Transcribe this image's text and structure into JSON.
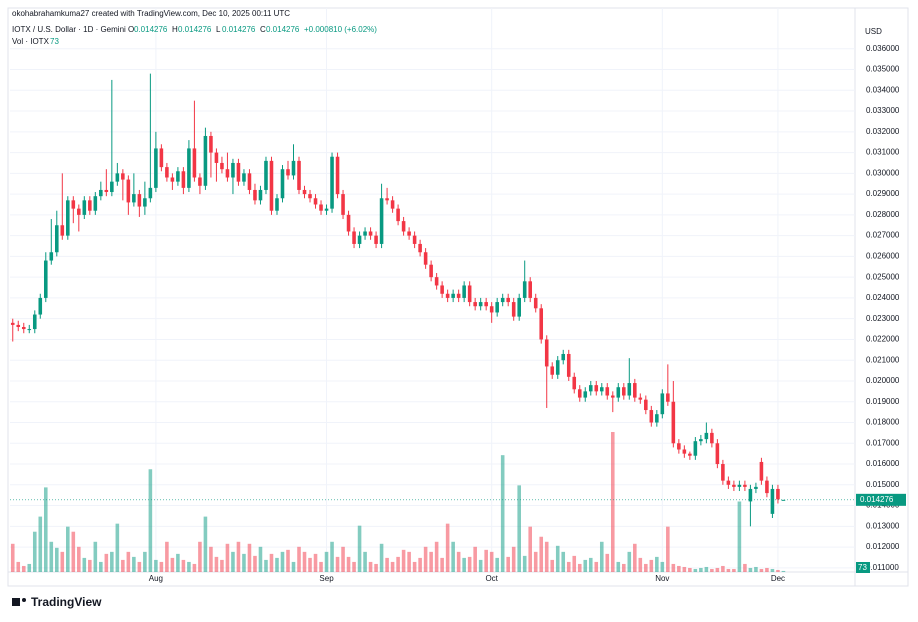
{
  "header": {
    "credit": "okohabrahamkuma27 created with TradingView.com, Dec 10, 2025 00:11 UTC",
    "symbol": "IOTX / U.S. Dollar · 1D · Gemini",
    "ohlc_labels": [
      "O",
      "H",
      "L",
      "C"
    ],
    "change": "+0.000810 (+6.02%)",
    "volume_label": "Vol · IOTX",
    "currency": "USD"
  },
  "footer": {
    "brand": "TradingView"
  },
  "chart_data": {
    "type": "candlestick",
    "up_color": "#089981",
    "down_color": "#f23645",
    "grid": true,
    "xlim": [
      -0.5,
      153
    ],
    "ylim": [
      0.0108,
      0.037
    ],
    "xticks": [
      {
        "value": 26,
        "label": "Aug"
      },
      {
        "value": 57,
        "label": "Sep"
      },
      {
        "value": 87,
        "label": "Oct"
      },
      {
        "value": 118,
        "label": "Nov"
      },
      {
        "value": 139,
        "label": "Dec"
      }
    ],
    "yticks": [
      {
        "value": 0.011,
        "label": "0.011000"
      },
      {
        "value": 0.012,
        "label": "0.012000"
      },
      {
        "value": 0.013,
        "label": "0.013000"
      },
      {
        "value": 0.014,
        "label": "0.014000"
      },
      {
        "value": 0.015,
        "label": "0.015000"
      },
      {
        "value": 0.016,
        "label": "0.016000"
      },
      {
        "value": 0.017,
        "label": "0.017000"
      },
      {
        "value": 0.018,
        "label": "0.018000"
      },
      {
        "value": 0.019,
        "label": "0.019000"
      },
      {
        "value": 0.02,
        "label": "0.020000"
      },
      {
        "value": 0.021,
        "label": "0.021000"
      },
      {
        "value": 0.022,
        "label": "0.022000"
      },
      {
        "value": 0.023,
        "label": "0.023000"
      },
      {
        "value": 0.024,
        "label": "0.024000"
      },
      {
        "value": 0.025,
        "label": "0.025000"
      },
      {
        "value": 0.026,
        "label": "0.026000"
      },
      {
        "value": 0.027,
        "label": "0.027000"
      },
      {
        "value": 0.028,
        "label": "0.028000"
      },
      {
        "value": 0.029,
        "label": "0.029000"
      },
      {
        "value": 0.03,
        "label": "0.030000"
      },
      {
        "value": 0.031,
        "label": "0.031000"
      },
      {
        "value": 0.032,
        "label": "0.032000"
      },
      {
        "value": 0.033,
        "label": "0.033000"
      },
      {
        "value": 0.034,
        "label": "0.034000"
      },
      {
        "value": 0.035,
        "label": "0.035000"
      },
      {
        "value": 0.036,
        "label": "0.036000"
      }
    ],
    "open": [
      0.0228,
      0.0227,
      0.0226,
      0.0225,
      0.0225,
      0.0232,
      0.024,
      0.0258,
      0.0262,
      0.0275,
      0.027,
      0.0287,
      0.0283,
      0.028,
      0.0287,
      0.0282,
      0.0289,
      0.0292,
      0.0291,
      0.0296,
      0.03,
      0.0297,
      0.0286,
      0.029,
      0.0284,
      0.0288,
      0.0293,
      0.0312,
      0.0303,
      0.0298,
      0.0296,
      0.0301,
      0.0293,
      0.0312,
      0.0298,
      0.0294,
      0.0318,
      0.031,
      0.0305,
      0.0302,
      0.0298,
      0.0305,
      0.0296,
      0.03,
      0.0292,
      0.0287,
      0.0292,
      0.0306,
      0.0282,
      0.0288,
      0.0302,
      0.0299,
      0.0306,
      0.0292,
      0.029,
      0.0288,
      0.0285,
      0.0282,
      0.0283,
      0.0308,
      0.029,
      0.028,
      0.0272,
      0.0266,
      0.027,
      0.0272,
      0.027,
      0.0266,
      0.0288,
      0.0287,
      0.0283,
      0.0277,
      0.0272,
      0.027,
      0.0266,
      0.0262,
      0.0256,
      0.025,
      0.0246,
      0.0242,
      0.024,
      0.0242,
      0.024,
      0.0246,
      0.0238,
      0.0236,
      0.0238,
      0.0236,
      0.0233,
      0.0238,
      0.024,
      0.0238,
      0.0231,
      0.024,
      0.0248,
      0.024,
      0.0235,
      0.022,
      0.0207,
      0.0203,
      0.021,
      0.0213,
      0.0202,
      0.0196,
      0.0192,
      0.0195,
      0.0198,
      0.0195,
      0.0197,
      0.0193,
      0.0192,
      0.0197,
      0.0193,
      0.0199,
      0.0192,
      0.0191,
      0.0186,
      0.018,
      0.0184,
      0.0194,
      0.019,
      0.017,
      0.0167,
      0.0165,
      0.0164,
      0.0171,
      0.0172,
      0.0175,
      0.017,
      0.016,
      0.0152,
      0.015,
      0.0149,
      0.015,
      0.0142,
      0.0148,
      0.0161,
      0.0152,
      0.0136,
      0.0148,
      0.014276
    ],
    "high": [
      0.023,
      0.0229,
      0.0228,
      0.0227,
      0.0234,
      0.0242,
      0.0262,
      0.0278,
      0.0282,
      0.03,
      0.0289,
      0.0289,
      0.0285,
      0.0289,
      0.0289,
      0.0291,
      0.0296,
      0.0302,
      0.0345,
      0.0305,
      0.0302,
      0.0299,
      0.03,
      0.0292,
      0.0296,
      0.0348,
      0.032,
      0.0314,
      0.0305,
      0.03,
      0.0303,
      0.0303,
      0.0316,
      0.0335,
      0.03,
      0.0322,
      0.032,
      0.0312,
      0.0308,
      0.031,
      0.0307,
      0.0307,
      0.0302,
      0.0302,
      0.0295,
      0.0294,
      0.0308,
      0.0308,
      0.029,
      0.0304,
      0.0306,
      0.0314,
      0.0308,
      0.0294,
      0.0292,
      0.029,
      0.0287,
      0.0285,
      0.031,
      0.031,
      0.0292,
      0.0282,
      0.0274,
      0.0272,
      0.0274,
      0.0274,
      0.0272,
      0.0295,
      0.0293,
      0.0289,
      0.0285,
      0.0279,
      0.0274,
      0.0272,
      0.0268,
      0.0264,
      0.0258,
      0.0252,
      0.0248,
      0.0244,
      0.0244,
      0.0244,
      0.0248,
      0.0248,
      0.024,
      0.024,
      0.024,
      0.0238,
      0.024,
      0.0242,
      0.0242,
      0.024,
      0.0242,
      0.0258,
      0.025,
      0.0242,
      0.0237,
      0.0222,
      0.0209,
      0.0212,
      0.0215,
      0.0215,
      0.0204,
      0.0198,
      0.0197,
      0.02,
      0.02,
      0.0199,
      0.0199,
      0.0195,
      0.0199,
      0.0199,
      0.0211,
      0.0201,
      0.0194,
      0.0193,
      0.0188,
      0.0186,
      0.0196,
      0.0208,
      0.02,
      0.0172,
      0.0169,
      0.0166,
      0.0173,
      0.0174,
      0.018,
      0.0177,
      0.0172,
      0.0162,
      0.0154,
      0.0152,
      0.0152,
      0.0152,
      0.015,
      0.0151,
      0.0163,
      0.0154,
      0.015,
      0.015,
      0.014276
    ],
    "low": [
      0.0219,
      0.0224,
      0.0223,
      0.0223,
      0.0223,
      0.023,
      0.0238,
      0.0256,
      0.026,
      0.0268,
      0.0268,
      0.0276,
      0.0272,
      0.0278,
      0.028,
      0.028,
      0.0287,
      0.0289,
      0.0289,
      0.0294,
      0.0287,
      0.028,
      0.0284,
      0.0279,
      0.028,
      0.0286,
      0.0291,
      0.0301,
      0.0296,
      0.0292,
      0.0294,
      0.029,
      0.0291,
      0.0296,
      0.029,
      0.0292,
      0.0298,
      0.0296,
      0.03,
      0.0296,
      0.029,
      0.0294,
      0.0294,
      0.029,
      0.0285,
      0.0285,
      0.029,
      0.028,
      0.028,
      0.0286,
      0.0297,
      0.0297,
      0.029,
      0.0288,
      0.0286,
      0.0283,
      0.028,
      0.028,
      0.0281,
      0.0288,
      0.0278,
      0.027,
      0.0264,
      0.0264,
      0.0268,
      0.0268,
      0.0264,
      0.0264,
      0.0285,
      0.0281,
      0.0275,
      0.027,
      0.0268,
      0.0264,
      0.026,
      0.0254,
      0.0248,
      0.0244,
      0.024,
      0.0238,
      0.0238,
      0.0238,
      0.0238,
      0.0236,
      0.0234,
      0.0234,
      0.0234,
      0.0228,
      0.0231,
      0.0236,
      0.0236,
      0.0229,
      0.0229,
      0.0238,
      0.0238,
      0.0233,
      0.0218,
      0.0187,
      0.0201,
      0.0201,
      0.0208,
      0.02,
      0.0194,
      0.019,
      0.019,
      0.0193,
      0.0193,
      0.0193,
      0.0191,
      0.0185,
      0.019,
      0.0191,
      0.0191,
      0.019,
      0.0189,
      0.0184,
      0.0178,
      0.0178,
      0.0182,
      0.0188,
      0.0168,
      0.0165,
      0.0163,
      0.0162,
      0.0162,
      0.0169,
      0.017,
      0.0168,
      0.0158,
      0.015,
      0.0148,
      0.0147,
      0.0147,
      0.0147,
      0.013,
      0.0146,
      0.015,
      0.0144,
      0.0134,
      0.0141,
      0.014276
    ],
    "close": [
      0.0227,
      0.0226,
      0.0225,
      0.0225,
      0.0232,
      0.024,
      0.0258,
      0.0262,
      0.0275,
      0.027,
      0.0287,
      0.0283,
      0.028,
      0.0287,
      0.0282,
      0.0289,
      0.0292,
      0.0291,
      0.0296,
      0.03,
      0.0297,
      0.0286,
      0.029,
      0.0284,
      0.0288,
      0.0293,
      0.0312,
      0.0303,
      0.0298,
      0.0296,
      0.0301,
      0.0293,
      0.0312,
      0.0298,
      0.0294,
      0.0318,
      0.031,
      0.0305,
      0.0302,
      0.0298,
      0.0305,
      0.0296,
      0.03,
      0.0292,
      0.0287,
      0.0292,
      0.0306,
      0.0282,
      0.0288,
      0.0302,
      0.0299,
      0.0306,
      0.0292,
      0.029,
      0.0288,
      0.0285,
      0.0282,
      0.0283,
      0.0308,
      0.029,
      0.028,
      0.0272,
      0.0266,
      0.027,
      0.0272,
      0.027,
      0.0266,
      0.0288,
      0.0287,
      0.0283,
      0.0277,
      0.0272,
      0.027,
      0.0266,
      0.0262,
      0.0256,
      0.025,
      0.0246,
      0.0242,
      0.024,
      0.0242,
      0.024,
      0.0246,
      0.0238,
      0.0236,
      0.0238,
      0.0236,
      0.0233,
      0.0238,
      0.024,
      0.0238,
      0.0231,
      0.024,
      0.0248,
      0.024,
      0.0235,
      0.022,
      0.0207,
      0.0203,
      0.021,
      0.0213,
      0.0202,
      0.0196,
      0.0192,
      0.0195,
      0.0198,
      0.0195,
      0.0197,
      0.0193,
      0.0192,
      0.0197,
      0.0193,
      0.0199,
      0.0192,
      0.0191,
      0.0186,
      0.018,
      0.0184,
      0.0194,
      0.019,
      0.017,
      0.0167,
      0.0165,
      0.0164,
      0.0171,
      0.0172,
      0.0175,
      0.017,
      0.016,
      0.0152,
      0.015,
      0.0149,
      0.015,
      0.0149,
      0.0148,
      0.0149,
      0.0152,
      0.0146,
      0.0148,
      0.0143,
      0.014276
    ],
    "volume": [
      1960,
      700,
      420,
      560,
      2800,
      3850,
      5880,
      2100,
      1680,
      1400,
      3150,
      2800,
      1750,
      980,
      840,
      2100,
      700,
      1260,
      1400,
      3360,
      840,
      1400,
      1050,
      700,
      1400,
      7140,
      840,
      700,
      2100,
      980,
      1260,
      840,
      700,
      560,
      2100,
      3850,
      1750,
      1050,
      840,
      1960,
      1400,
      2100,
      1260,
      1960,
      1120,
      1750,
      840,
      1260,
      980,
      1400,
      1540,
      700,
      1750,
      1400,
      980,
      1260,
      700,
      1400,
      2100,
      1050,
      1750,
      1050,
      700,
      3220,
      1400,
      700,
      560,
      1960,
      980,
      700,
      1050,
      1540,
      1400,
      700,
      980,
      1750,
      1400,
      2100,
      980,
      3360,
      2100,
      1400,
      980,
      1050,
      1750,
      840,
      1540,
      1400,
      980,
      8120,
      1050,
      1750,
      6020,
      1120,
      3150,
      1400,
      2450,
      2100,
      840,
      1820,
      1400,
      700,
      1120,
      560,
      840,
      980,
      700,
      2100,
      1260,
      9730,
      700,
      560,
      1400,
      1960,
      980,
      560,
      840,
      1050,
      700,
      3150,
      560,
      420,
      350,
      280,
      210,
      280,
      350,
      210,
      280,
      420,
      210,
      210,
      4900,
      560,
      280,
      350,
      210,
      280,
      210,
      140,
      73
    ]
  }
}
